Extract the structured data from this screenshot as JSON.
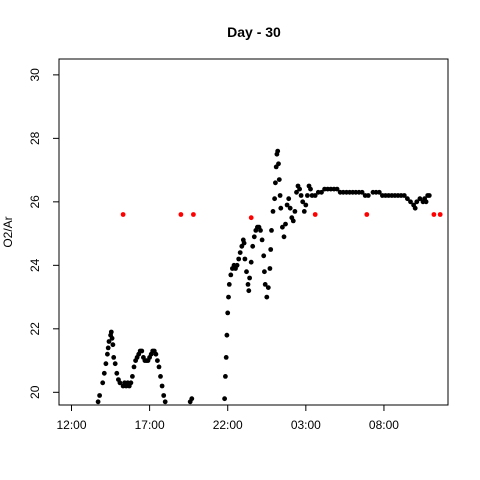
{
  "chart_data": {
    "type": "scatter",
    "title": "Day - 30",
    "xlabel": "",
    "ylabel": "O2/Ar",
    "xlim_hours": [
      11.2,
      36.1
    ],
    "ylim": [
      19.6,
      30.5
    ],
    "x_ticks": [
      {
        "hour": 12,
        "label": "12:00"
      },
      {
        "hour": 17,
        "label": "17:00"
      },
      {
        "hour": 22,
        "label": "22:00"
      },
      {
        "hour": 27,
        "label": "03:00"
      },
      {
        "hour": 32,
        "label": "08:00"
      }
    ],
    "y_ticks": [
      20,
      22,
      24,
      26,
      28,
      30
    ],
    "grid": false,
    "series": [
      {
        "color": "#000000",
        "points": [
          [
            13.7,
            19.7
          ],
          [
            13.8,
            19.9
          ],
          [
            14.0,
            20.3
          ],
          [
            14.1,
            20.6
          ],
          [
            14.2,
            20.9
          ],
          [
            14.3,
            21.2
          ],
          [
            14.35,
            21.4
          ],
          [
            14.4,
            21.6
          ],
          [
            14.5,
            21.8
          ],
          [
            14.55,
            21.9
          ],
          [
            14.6,
            21.7
          ],
          [
            14.65,
            21.5
          ],
          [
            14.7,
            21.1
          ],
          [
            14.8,
            20.9
          ],
          [
            14.9,
            20.6
          ],
          [
            15.0,
            20.4
          ],
          [
            15.1,
            20.3
          ],
          [
            15.3,
            20.2
          ],
          [
            15.4,
            20.3
          ],
          [
            15.5,
            20.2
          ],
          [
            15.6,
            20.3
          ],
          [
            15.7,
            20.2
          ],
          [
            15.8,
            20.3
          ],
          [
            15.9,
            20.5
          ],
          [
            16.0,
            20.8
          ],
          [
            16.1,
            21.0
          ],
          [
            16.2,
            21.1
          ],
          [
            16.3,
            21.2
          ],
          [
            16.4,
            21.3
          ],
          [
            16.5,
            21.3
          ],
          [
            16.6,
            21.1
          ],
          [
            16.7,
            21.0
          ],
          [
            16.8,
            21.0
          ],
          [
            16.9,
            21.0
          ],
          [
            17.0,
            21.1
          ],
          [
            17.1,
            21.2
          ],
          [
            17.2,
            21.3
          ],
          [
            17.3,
            21.3
          ],
          [
            17.4,
            21.2
          ],
          [
            17.5,
            21.0
          ],
          [
            17.6,
            20.8
          ],
          [
            17.7,
            20.5
          ],
          [
            17.8,
            20.2
          ],
          [
            17.9,
            19.9
          ],
          [
            18.0,
            19.7
          ],
          [
            19.6,
            19.7
          ],
          [
            19.7,
            19.8
          ],
          [
            21.8,
            19.8
          ],
          [
            21.85,
            20.5
          ],
          [
            21.9,
            21.1
          ],
          [
            21.95,
            21.8
          ],
          [
            22.0,
            22.5
          ],
          [
            22.05,
            23.0
          ],
          [
            22.1,
            23.4
          ],
          [
            22.2,
            23.7
          ],
          [
            22.3,
            23.9
          ],
          [
            22.4,
            24.0
          ],
          [
            22.5,
            23.9
          ],
          [
            22.6,
            24.0
          ],
          [
            22.7,
            24.2
          ],
          [
            22.8,
            24.4
          ],
          [
            22.9,
            24.6
          ],
          [
            23.0,
            24.8
          ],
          [
            23.05,
            24.7
          ],
          [
            23.1,
            24.2
          ],
          [
            23.2,
            23.8
          ],
          [
            23.3,
            23.4
          ],
          [
            23.35,
            23.2
          ],
          [
            23.4,
            23.6
          ],
          [
            23.5,
            24.1
          ],
          [
            23.6,
            24.6
          ],
          [
            23.7,
            24.9
          ],
          [
            23.8,
            25.1
          ],
          [
            23.9,
            25.2
          ],
          [
            24.0,
            25.2
          ],
          [
            24.1,
            25.1
          ],
          [
            24.2,
            24.8
          ],
          [
            24.3,
            24.3
          ],
          [
            24.35,
            23.8
          ],
          [
            24.4,
            23.4
          ],
          [
            24.5,
            23.0
          ],
          [
            24.6,
            23.3
          ],
          [
            24.7,
            23.9
          ],
          [
            24.75,
            24.5
          ],
          [
            24.8,
            25.1
          ],
          [
            24.9,
            25.7
          ],
          [
            25.0,
            26.1
          ],
          [
            25.05,
            26.6
          ],
          [
            25.1,
            27.1
          ],
          [
            25.15,
            27.5
          ],
          [
            25.2,
            27.6
          ],
          [
            25.25,
            27.2
          ],
          [
            25.3,
            26.7
          ],
          [
            25.35,
            26.2
          ],
          [
            25.4,
            25.8
          ],
          [
            25.5,
            25.2
          ],
          [
            25.6,
            24.9
          ],
          [
            25.7,
            25.3
          ],
          [
            25.8,
            25.9
          ],
          [
            25.9,
            26.1
          ],
          [
            26.0,
            25.8
          ],
          [
            26.1,
            25.5
          ],
          [
            26.2,
            25.4
          ],
          [
            26.3,
            25.7
          ],
          [
            26.4,
            26.3
          ],
          [
            26.5,
            26.5
          ],
          [
            26.6,
            26.4
          ],
          [
            26.7,
            26.2
          ],
          [
            26.8,
            26.0
          ],
          [
            26.9,
            25.7
          ],
          [
            27.0,
            25.9
          ],
          [
            27.1,
            26.2
          ],
          [
            27.2,
            26.5
          ],
          [
            27.3,
            26.4
          ],
          [
            27.4,
            26.2
          ],
          [
            27.6,
            26.2
          ],
          [
            27.8,
            26.3
          ],
          [
            28.0,
            26.3
          ],
          [
            28.2,
            26.4
          ],
          [
            28.4,
            26.4
          ],
          [
            28.6,
            26.4
          ],
          [
            28.8,
            26.4
          ],
          [
            29.0,
            26.4
          ],
          [
            29.2,
            26.3
          ],
          [
            29.4,
            26.3
          ],
          [
            29.6,
            26.3
          ],
          [
            29.8,
            26.3
          ],
          [
            30.0,
            26.3
          ],
          [
            30.2,
            26.3
          ],
          [
            30.4,
            26.3
          ],
          [
            30.6,
            26.3
          ],
          [
            30.8,
            26.2
          ],
          [
            31.0,
            26.2
          ],
          [
            31.3,
            26.3
          ],
          [
            31.5,
            26.3
          ],
          [
            31.7,
            26.3
          ],
          [
            31.9,
            26.2
          ],
          [
            32.1,
            26.2
          ],
          [
            32.3,
            26.2
          ],
          [
            32.5,
            26.2
          ],
          [
            32.7,
            26.2
          ],
          [
            32.9,
            26.2
          ],
          [
            33.1,
            26.2
          ],
          [
            33.3,
            26.2
          ],
          [
            33.5,
            26.1
          ],
          [
            33.7,
            26.0
          ],
          [
            33.9,
            25.9
          ],
          [
            34.0,
            25.8
          ],
          [
            34.1,
            26.0
          ],
          [
            34.3,
            26.1
          ],
          [
            34.5,
            26.0
          ],
          [
            34.6,
            26.1
          ],
          [
            34.7,
            26.0
          ],
          [
            34.8,
            26.2
          ],
          [
            34.9,
            26.2
          ]
        ]
      },
      {
        "color": "#ff0000",
        "points": [
          [
            15.3,
            25.6
          ],
          [
            19.0,
            25.6
          ],
          [
            19.8,
            25.6
          ],
          [
            23.5,
            25.5
          ],
          [
            27.6,
            25.6
          ],
          [
            30.9,
            25.6
          ],
          [
            35.2,
            25.6
          ],
          [
            35.6,
            25.6
          ]
        ]
      }
    ]
  }
}
